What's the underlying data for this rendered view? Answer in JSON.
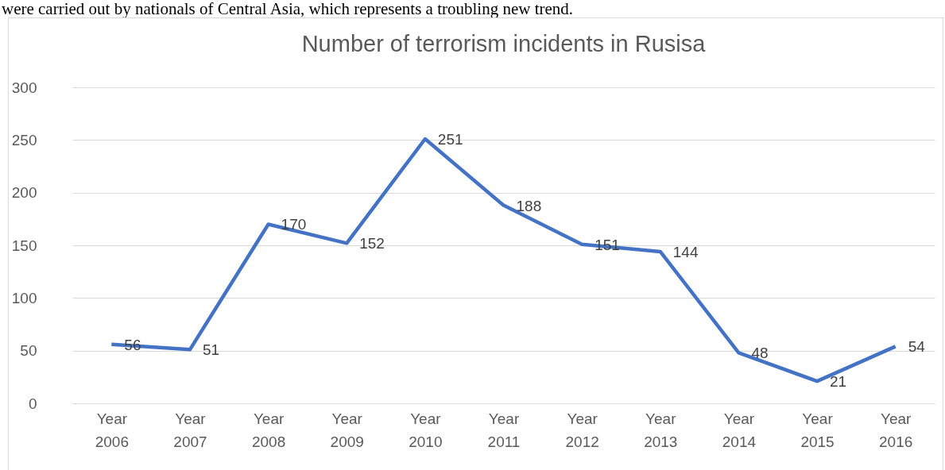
{
  "chart_data": {
    "type": "line",
    "title": "Number of terrorism incidents in Rusisa",
    "annotations": [
      "were carried out by nationals of Central Asia, which represents a troubling new trend."
    ],
    "categories": [
      "Year 2006",
      "Year 2007",
      "Year 2008",
      "Year 2009",
      "Year 2010",
      "Year 2011",
      "Year 2012",
      "Year 2013",
      "Year 2014",
      "Year 2015",
      "Year 2016"
    ],
    "series": [
      {
        "color": "#4472c4",
        "values": [
          56,
          51,
          170,
          152,
          251,
          188,
          151,
          144,
          48,
          21,
          54
        ]
      }
    ],
    "ylim": [
      0,
      300
    ],
    "yticks": [
      0,
      50,
      100,
      150,
      200,
      250,
      300
    ],
    "grid": "y",
    "data_labels": true,
    "legend": false,
    "marker": "none",
    "line_style": "solid"
  }
}
